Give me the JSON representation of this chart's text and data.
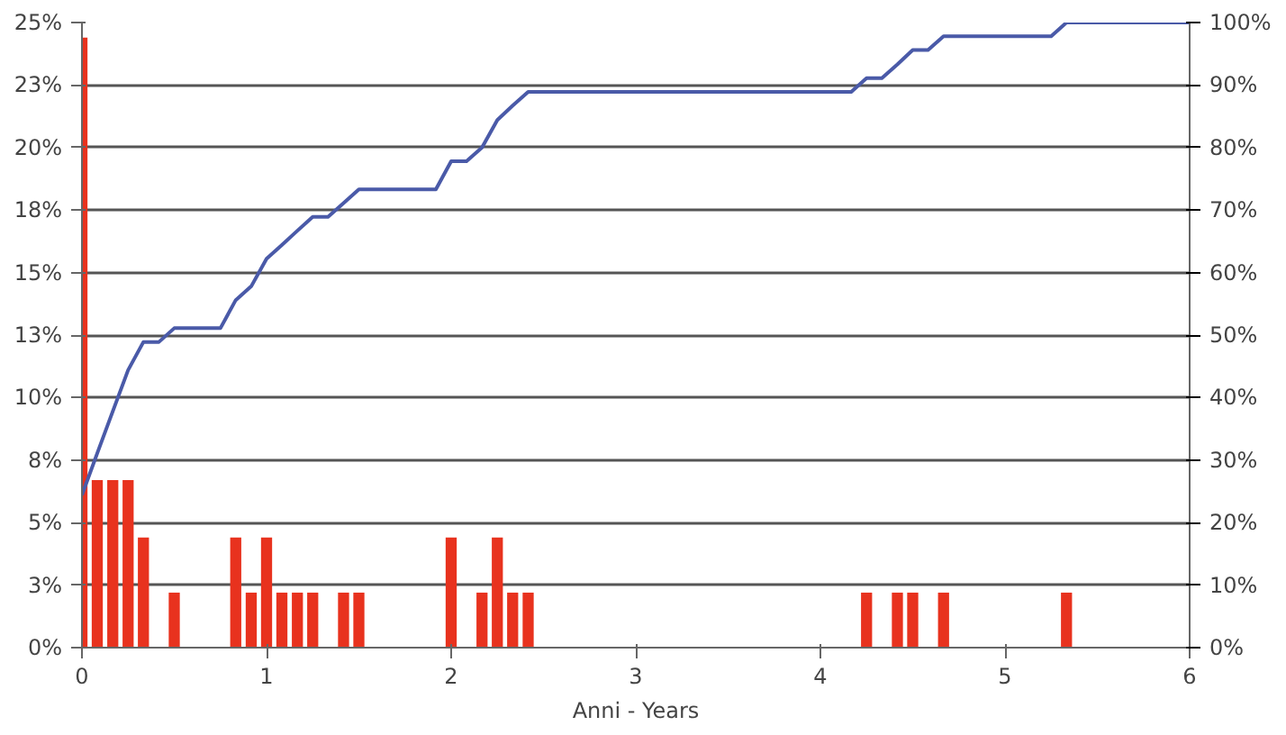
{
  "chart_data": {
    "type": "bar",
    "xlabel": "Anni - Years",
    "xlim": [
      0,
      6
    ],
    "xticks": [
      0,
      1,
      2,
      3,
      4,
      5,
      6
    ],
    "ylim": [
      0,
      25
    ],
    "yticks": [
      {
        "value": 0,
        "label": "0%"
      },
      {
        "value": 2.5,
        "label": "3%"
      },
      {
        "value": 5,
        "label": "5%"
      },
      {
        "value": 7.5,
        "label": "8%"
      },
      {
        "value": 10,
        "label": "10%"
      },
      {
        "value": 12.5,
        "label": "13%"
      },
      {
        "value": 15,
        "label": "15%"
      },
      {
        "value": 17.5,
        "label": "18%"
      },
      {
        "value": 20,
        "label": "20%"
      },
      {
        "value": 22.5,
        "label": "23%"
      },
      {
        "value": 25,
        "label": "25%"
      }
    ],
    "y2lim": [
      0,
      100
    ],
    "y2ticks": [
      {
        "value": 0,
        "label": "0%"
      },
      {
        "value": 10,
        "label": "10%"
      },
      {
        "value": 20,
        "label": "20%"
      },
      {
        "value": 30,
        "label": "30%"
      },
      {
        "value": 40,
        "label": "40%"
      },
      {
        "value": 50,
        "label": "50%"
      },
      {
        "value": 60,
        "label": "60%"
      },
      {
        "value": 70,
        "label": "70%"
      },
      {
        "value": 80,
        "label": "80%"
      },
      {
        "value": 90,
        "label": "90%"
      },
      {
        "value": 100,
        "label": "100%"
      }
    ],
    "grid": "y",
    "line_style": "solid",
    "series": [
      {
        "color": "#e8321e",
        "x": [
          0,
          0.083,
          0.167,
          0.25,
          0.333,
          0.5,
          0.833,
          0.917,
          1,
          1.083,
          1.167,
          1.25,
          1.417,
          1.5,
          2,
          2.167,
          2.25,
          2.333,
          2.417,
          4.25,
          4.417,
          4.5,
          4.667,
          5.333
        ],
        "values": [
          24.4,
          6.7,
          6.7,
          6.7,
          4.4,
          2.2,
          4.4,
          2.2,
          4.4,
          2.2,
          2.2,
          2.2,
          2.2,
          2.2,
          4.4,
          2.2,
          4.4,
          2.2,
          2.2,
          2.2,
          2.2,
          2.2,
          2.2,
          2.2
        ]
      },
      {
        "type": "line",
        "axis": "y2",
        "color": "#4a5aa8",
        "x": [
          0,
          0.083,
          0.167,
          0.25,
          0.333,
          0.417,
          0.5,
          0.75,
          0.833,
          0.917,
          1,
          1.083,
          1.167,
          1.25,
          1.333,
          1.417,
          1.5,
          1.917,
          2,
          2.083,
          2.167,
          2.25,
          2.333,
          2.417,
          4.167,
          4.25,
          4.333,
          4.417,
          4.5,
          4.583,
          4.667,
          5.25,
          5.333,
          6
        ],
        "values": [
          24.4,
          31.1,
          37.8,
          44.4,
          48.9,
          48.9,
          51.1,
          51.1,
          55.6,
          57.8,
          62.2,
          64.4,
          66.7,
          68.9,
          68.9,
          71.1,
          73.3,
          73.3,
          77.8,
          77.8,
          80,
          84.4,
          86.7,
          88.9,
          88.9,
          91.1,
          91.1,
          93.3,
          95.6,
          95.6,
          97.8,
          97.8,
          100,
          100
        ]
      }
    ]
  }
}
